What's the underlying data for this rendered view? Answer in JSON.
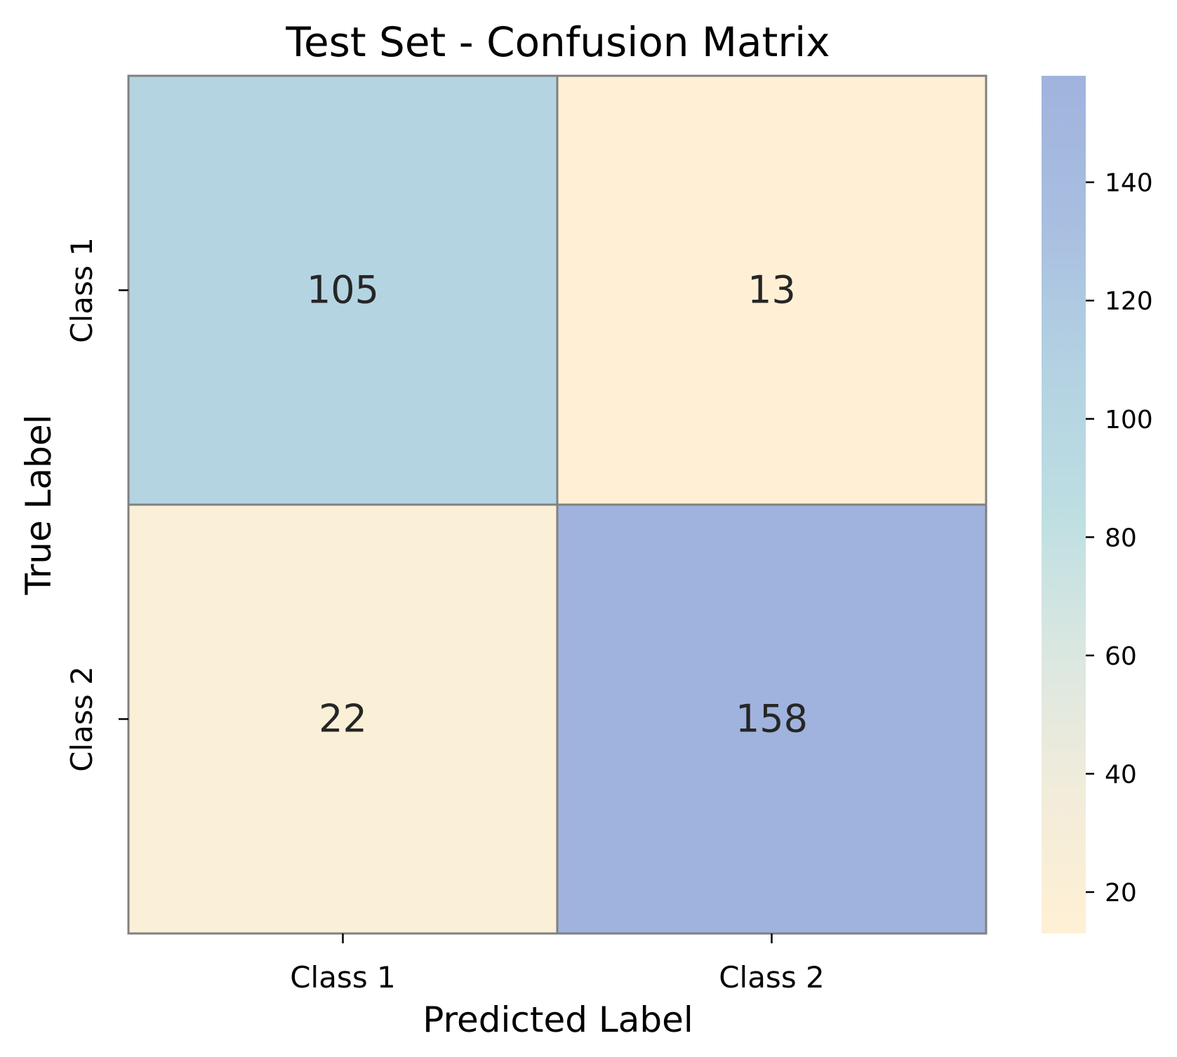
{
  "chart_data": {
    "type": "heatmap",
    "title": "Test Set - Confusion Matrix",
    "xlabel": "Predicted Label",
    "ylabel": "True Label",
    "x_categories": [
      "Class 1",
      "Class 2"
    ],
    "y_categories": [
      "Class 1",
      "Class 2"
    ],
    "values": [
      [
        105,
        13
      ],
      [
        22,
        158
      ]
    ],
    "annotations": [
      "105",
      "13",
      "22",
      "158"
    ],
    "colorbar": {
      "range": [
        13,
        158
      ],
      "ticks": [
        20,
        40,
        60,
        80,
        100,
        120,
        140
      ],
      "tick_labels": [
        "20",
        "40",
        "60",
        "80",
        "100",
        "120",
        "140"
      ],
      "colors": [
        "#FFF0D5",
        "#F2ECDA",
        "#D9E7E1",
        "#BCDEE2",
        "#B3D1E2",
        "#A8BEE0",
        "#A0B3DE"
      ]
    },
    "cell_border_color": "#808080",
    "grid": false
  }
}
